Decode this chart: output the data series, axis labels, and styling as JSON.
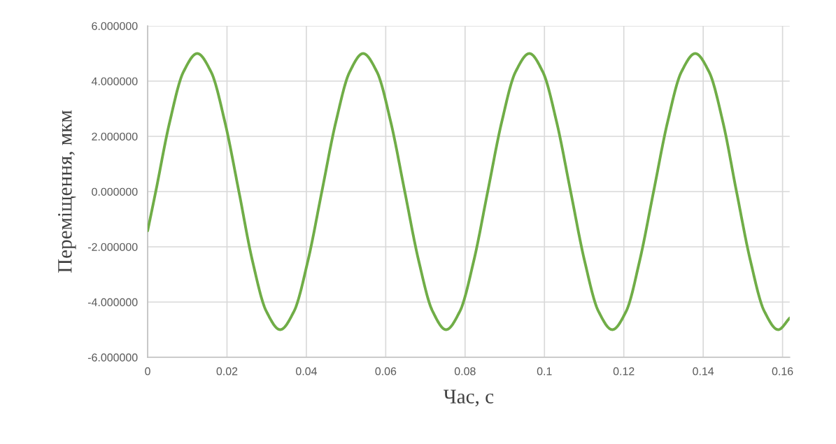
{
  "chart_data": {
    "type": "line",
    "xlabel": "Час, с",
    "ylabel": "Переміщення, мкм",
    "xlim": [
      0,
      0.1618
    ],
    "xticks": [
      0,
      0.02,
      0.04,
      0.06,
      0.08,
      0.1,
      0.12,
      0.14,
      0.16
    ],
    "ylim": [
      -6,
      6
    ],
    "yticks": [
      {
        "value": -6,
        "label": "-6.000000"
      },
      {
        "value": -4,
        "label": "-4.000000"
      },
      {
        "value": -2,
        "label": "-2.000000"
      },
      {
        "value": 0,
        "label": "0.000000"
      },
      {
        "value": 2,
        "label": "2.000000"
      },
      {
        "value": 4,
        "label": "4.000000"
      },
      {
        "value": 6,
        "label": "6.000000"
      }
    ],
    "grid": true,
    "marker": "none",
    "line_style": "solid",
    "series": [
      {
        "color": "#70ad47",
        "x": [
          0,
          0.00204,
          0.00553,
          0.00901,
          0.0125,
          0.016,
          0.0195,
          0.023,
          0.0264,
          0.0299,
          0.0334,
          0.0369,
          0.0404,
          0.0439,
          0.0474,
          0.0509,
          0.0543,
          0.0578,
          0.0613,
          0.0648,
          0.0683,
          0.0718,
          0.0752,
          0.0787,
          0.0822,
          0.0857,
          0.0892,
          0.0927,
          0.0962,
          0.0996,
          0.1031,
          0.1066,
          0.1101,
          0.1136,
          0.1171,
          0.1206,
          0.124,
          0.1275,
          0.131,
          0.1345,
          0.138,
          0.1415,
          0.145,
          0.1484,
          0.1519,
          0.1554,
          0.1589,
          0.1618
        ],
        "values": [
          -1.42,
          0,
          2.5,
          4.33,
          5,
          4.33,
          2.5,
          0,
          -2.5,
          -4.33,
          -5,
          -4.33,
          -2.5,
          0,
          2.5,
          4.33,
          5,
          4.33,
          2.5,
          0,
          -2.5,
          -4.33,
          -5,
          -4.33,
          -2.5,
          0,
          2.5,
          4.33,
          5,
          4.33,
          2.5,
          0,
          -2.5,
          -4.33,
          -5,
          -4.33,
          -2.5,
          0,
          2.5,
          4.33,
          5,
          4.33,
          2.5,
          0,
          -2.5,
          -4.33,
          -5,
          -4.58
        ]
      }
    ]
  }
}
